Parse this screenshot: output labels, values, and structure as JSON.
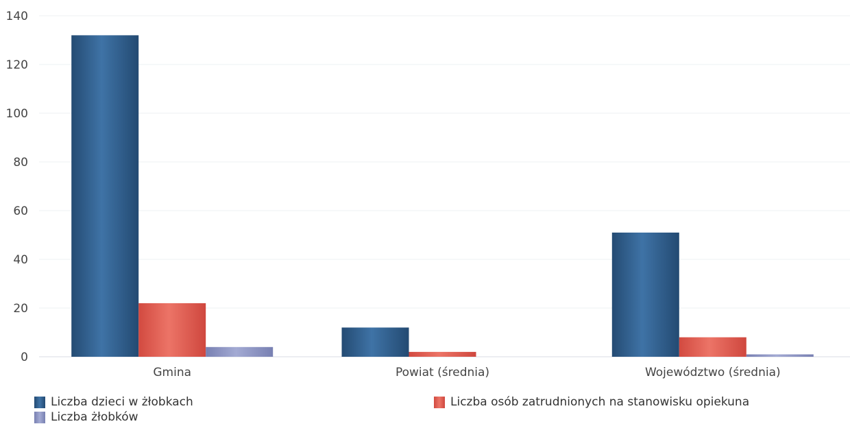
{
  "chart_data": {
    "type": "bar",
    "categories": [
      "Gmina",
      "Powiat (średnia)",
      "Województwo (średnia)"
    ],
    "series": [
      {
        "name": "Liczba dzieci w żłobkach",
        "values": [
          132,
          12,
          51
        ],
        "color": "#2f5f8f"
      },
      {
        "name": "Liczba osób zatrudnionych na stanowisku opiekuna",
        "values": [
          22,
          2,
          8
        ],
        "color": "#e0554a"
      },
      {
        "name": "Liczba żłobków",
        "values": [
          4,
          0,
          1
        ],
        "color": "#8a91bf"
      }
    ],
    "ylim": [
      0,
      140
    ],
    "yticks": [
      0,
      20,
      40,
      60,
      80,
      100,
      120,
      140
    ],
    "title": "",
    "xlabel": "",
    "ylabel": "",
    "grid": true,
    "legend_position": "bottom"
  }
}
